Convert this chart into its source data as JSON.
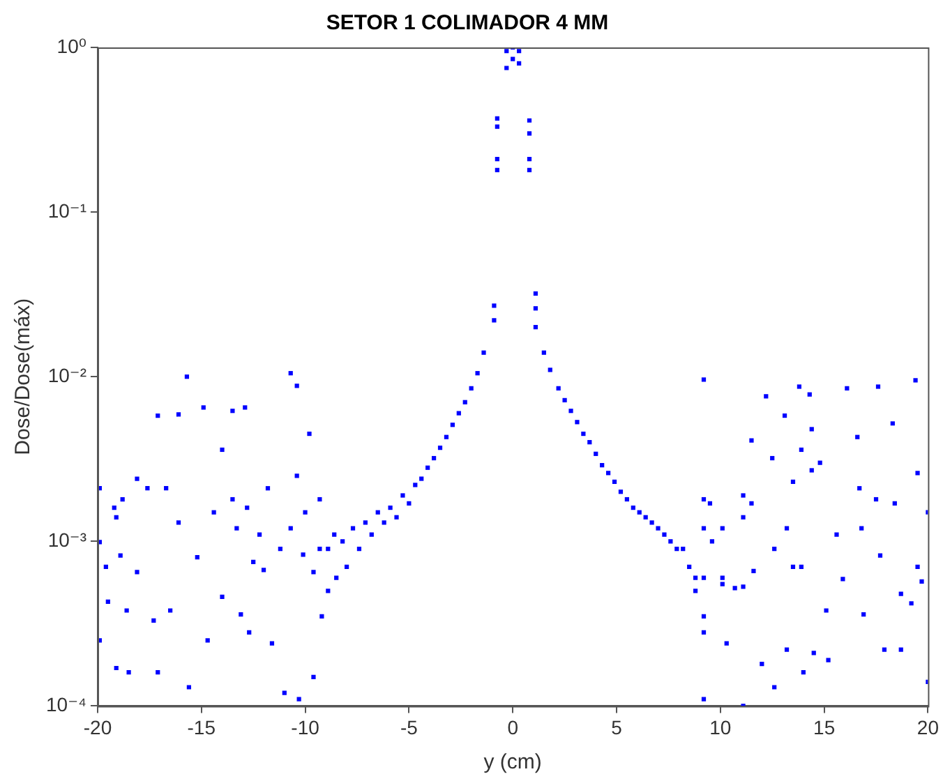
{
  "chart_data": {
    "type": "scatter",
    "title": "SETOR 1 COLIMADOR 4 MM",
    "xlabel": "y (cm)",
    "ylabel": "Dose/Dose(máx)",
    "log": "y",
    "marker": "square",
    "grid": false,
    "xlim": [
      -20,
      20
    ],
    "xticks": [
      -20,
      -15,
      -10,
      -5,
      0,
      5,
      10,
      15,
      20
    ],
    "ylim": [
      0.0001,
      1
    ],
    "yticks": [
      {
        "value": 0.0001,
        "label": "10⁻⁴"
      },
      {
        "value": 0.001,
        "label": "10⁻³"
      },
      {
        "value": 0.01,
        "label": "10⁻²"
      },
      {
        "value": 0.1,
        "label": "10⁻¹"
      },
      {
        "value": 1,
        "label": "10⁰"
      }
    ],
    "series": [
      {
        "color": "#0000ff",
        "x": [
          -19.9,
          -19.9,
          -19.9,
          -19.6,
          -19.5,
          -19.2,
          -19.1,
          -19.1,
          -18.9,
          -18.8,
          -18.6,
          -18.5,
          -18.1,
          -18.1,
          -17.6,
          -17.3,
          -17.1,
          -17.1,
          -16.7,
          -16.5,
          -16.1,
          -16.1,
          -15.6,
          -15.7,
          -15.2,
          -14.9,
          -14.7,
          -14.4,
          -14.0,
          -14.0,
          -13.5,
          -13.5,
          -13.3,
          -13.1,
          -12.9,
          -12.8,
          -12.7,
          -12.2,
          -12.0,
          -11.8,
          -11.6,
          -11.0,
          -10.7,
          -10.4,
          -10.4,
          -10.1,
          -10.0,
          -9.8,
          -9.6,
          -9.3,
          -9.3,
          -9.2,
          -10.3,
          -9.6,
          -10.7,
          -11.2,
          -12.5,
          -8.9,
          -8.9,
          -8.6,
          -8.5,
          -8.2,
          -8.0,
          -7.7,
          -7.4,
          -7.1,
          -6.8,
          -6.5,
          -6.2,
          -5.9,
          -5.6,
          -5.3,
          -5.0,
          -4.7,
          -4.4,
          -4.1,
          -3.8,
          -3.5,
          -3.2,
          -2.9,
          -2.6,
          -2.3,
          -2.0,
          -1.7,
          -1.4,
          -0.9,
          -0.9,
          -0.75,
          -0.75,
          -0.75,
          -0.75,
          -0.3,
          -0.3,
          0,
          0,
          0.3,
          0.3,
          0.8,
          0.8,
          0.8,
          0.8,
          1.1,
          1.1,
          1.1,
          1.5,
          1.8,
          2.2,
          2.5,
          2.8,
          3.1,
          3.4,
          3.7,
          4.0,
          4.3,
          4.6,
          4.9,
          5.2,
          5.5,
          5.8,
          6.1,
          6.4,
          6.7,
          7.0,
          7.3,
          7.6,
          7.9,
          8.2,
          8.5,
          8.8,
          8.8,
          9.2,
          9.2,
          9.5,
          9.2,
          9.6,
          9.2,
          9.2,
          9.2,
          9.2,
          10.1,
          10.1,
          10.3,
          10.7,
          11.1,
          11.1,
          11.1,
          11.1,
          11.5,
          11.5,
          11.6,
          12.2,
          12.0,
          12.5,
          12.6,
          13.1,
          13.2,
          13.2,
          13.5,
          13.5,
          13.8,
          13.9,
          13.9,
          14.0,
          14.3,
          14.4,
          14.4,
          14.5,
          14.8,
          15.1,
          15.2,
          15.6,
          15.9,
          16.6,
          16.7,
          16.8,
          16.9,
          17.6,
          17.5,
          17.7,
          17.9,
          18.3,
          18.4,
          18.7,
          18.7,
          19.4,
          19.5,
          19.5,
          19.7,
          20.0,
          20.0,
          19.2,
          16.1,
          10.1,
          12.6
        ],
        "values": [
          0.0021,
          0.00099,
          0.00025,
          0.0007,
          0.00043,
          0.0016,
          0.0014,
          0.00017,
          0.00082,
          0.0018,
          0.00038,
          0.00016,
          0.0024,
          0.00065,
          0.0021,
          0.00033,
          0.0058,
          0.00016,
          0.0021,
          0.00038,
          0.0059,
          0.0013,
          0.00013,
          0.01,
          0.0008,
          0.0065,
          0.00025,
          0.0015,
          0.0036,
          0.00046,
          0.0062,
          0.0018,
          0.0012,
          0.00036,
          0.0065,
          0.0016,
          0.00028,
          0.0011,
          0.00067,
          0.0021,
          0.00024,
          0.00012,
          0.0105,
          0.0088,
          0.0025,
          0.00083,
          0.0015,
          0.0045,
          0.00015,
          0.0018,
          0.0009,
          0.00035,
          0.00011,
          0.00065,
          0.0012,
          0.0009,
          0.00075,
          0.0009,
          0.0005,
          0.0011,
          0.0006,
          0.001,
          0.0007,
          0.0012,
          0.0009,
          0.0013,
          0.0011,
          0.0015,
          0.0013,
          0.0016,
          0.0014,
          0.0019,
          0.0017,
          0.0022,
          0.0024,
          0.0028,
          0.0032,
          0.0037,
          0.0043,
          0.0051,
          0.006,
          0.007,
          0.0085,
          0.0105,
          0.014,
          0.022,
          0.027,
          0.18,
          0.21,
          0.33,
          0.37,
          0.75,
          0.95,
          0.85,
          1.0,
          0.8,
          0.95,
          0.18,
          0.21,
          0.3,
          0.36,
          0.02,
          0.026,
          0.032,
          0.014,
          0.011,
          0.0085,
          0.0072,
          0.0062,
          0.0053,
          0.0045,
          0.004,
          0.0034,
          0.0029,
          0.0026,
          0.0023,
          0.002,
          0.0018,
          0.0016,
          0.0015,
          0.0014,
          0.0013,
          0.0012,
          0.0011,
          0.001,
          0.0009,
          0.0009,
          0.0007,
          0.0006,
          0.0005,
          0.0096,
          0.0018,
          0.0017,
          0.0012,
          0.001,
          0.0006,
          0.00035,
          0.00028,
          0.00011,
          0.0006,
          0.00055,
          0.00024,
          0.00052,
          0.0019,
          0.0014,
          0.00053,
          0.0001,
          0.0041,
          0.0017,
          0.00066,
          0.0076,
          0.00018,
          0.0032,
          0.00013,
          0.0058,
          0.0012,
          0.00022,
          0.0023,
          0.0007,
          0.0087,
          0.0036,
          0.0007,
          0.00016,
          0.0078,
          0.0048,
          0.0027,
          0.00021,
          0.003,
          0.00038,
          0.00019,
          0.0011,
          0.00059,
          0.0043,
          0.0021,
          0.0012,
          0.00036,
          0.0087,
          0.0018,
          0.00082,
          0.00022,
          0.0052,
          0.0017,
          0.00048,
          0.00022,
          0.0095,
          0.0026,
          0.0007,
          0.00057,
          0.0015,
          0.00014,
          0.00042,
          0.0085,
          0.0012,
          0.0009
        ]
      }
    ]
  }
}
